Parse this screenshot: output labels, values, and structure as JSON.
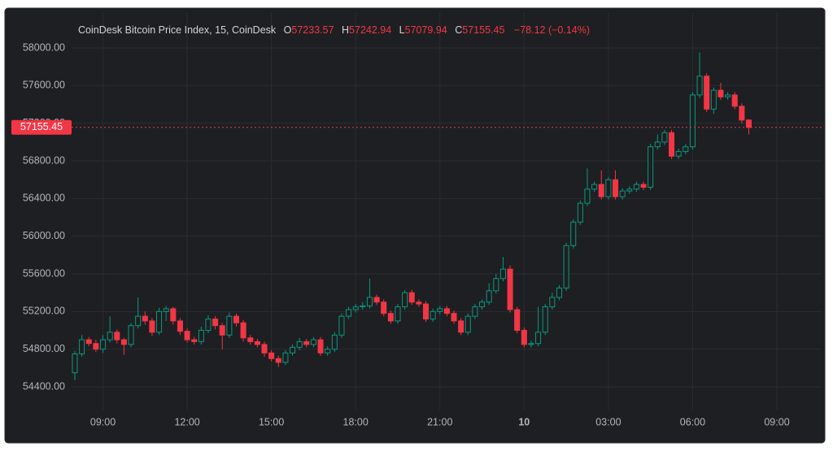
{
  "chart_data": {
    "type": "candlestick",
    "title": "CoinDesk Bitcoin Price Index, 15, CoinDesk",
    "ohlc_labels": [
      "O",
      "H",
      "L",
      "C"
    ],
    "change_label": "−78.12 (−0.14%)",
    "categories": [
      null,
      null,
      null,
      null,
      "09:00",
      null,
      null,
      null,
      null,
      null,
      null,
      null,
      null,
      null,
      null,
      null,
      "12:00",
      null,
      null,
      null,
      null,
      null,
      null,
      null,
      null,
      null,
      null,
      null,
      "15:00",
      null,
      null,
      null,
      null,
      null,
      null,
      null,
      null,
      null,
      null,
      null,
      "18:00",
      null,
      null,
      null,
      null,
      null,
      null,
      null,
      null,
      null,
      null,
      null,
      "21:00",
      null,
      null,
      null,
      null,
      null,
      null,
      null,
      null,
      null,
      null,
      null,
      "10",
      null,
      null,
      null,
      null,
      null,
      null,
      null,
      null,
      null,
      null,
      null,
      "03:00",
      null,
      null,
      null,
      null,
      null,
      null,
      null,
      null,
      null,
      null,
      null,
      "06:00",
      null,
      null,
      null,
      null,
      null,
      null,
      null,
      null,
      null,
      null,
      null,
      "09:00"
    ],
    "open": [
      54550,
      54750,
      54900,
      54860,
      54800,
      54900,
      54980,
      54900,
      54850,
      55050,
      55150,
      55100,
      54980,
      55200,
      55230,
      55100,
      54990,
      54900,
      54880,
      55000,
      55120,
      55050,
      54950,
      55150,
      55080,
      54920,
      54880,
      54850,
      54760,
      54700,
      54660,
      54760,
      54820,
      54880,
      54850,
      54900,
      54760,
      54800,
      54950,
      55150,
      55220,
      55250,
      55260,
      55350,
      55300,
      55180,
      55100,
      55250,
      55400,
      55300,
      55280,
      55120,
      55200,
      55230,
      55180,
      55100,
      54980,
      55150,
      55250,
      55300,
      55420,
      55550,
      55650,
      55220,
      55000,
      54850,
      54860,
      54980,
      55250,
      55350,
      55450,
      55900,
      56150,
      56350,
      56500,
      56550,
      56420,
      56600,
      56420,
      56480,
      56500,
      56550,
      56520,
      56950,
      57000,
      57100,
      56850,
      56900,
      56950,
      57500,
      57700,
      57350,
      57550,
      57480,
      57500,
      57380,
      57233.57,
      null,
      null,
      null,
      null
    ],
    "high": [
      54780,
      54950,
      54930,
      54900,
      54950,
      55150,
      55010,
      54920,
      55080,
      55350,
      55200,
      55130,
      55240,
      55260,
      55250,
      55130,
      55020,
      54930,
      55040,
      55160,
      55150,
      55080,
      55190,
      55180,
      55110,
      54950,
      54910,
      54880,
      54790,
      54730,
      54790,
      54850,
      54920,
      54910,
      54930,
      54930,
      54830,
      54980,
      55180,
      55250,
      55280,
      55300,
      55550,
      55380,
      55330,
      55210,
      55280,
      55430,
      55430,
      55330,
      55310,
      55230,
      55260,
      55260,
      55210,
      55130,
      55180,
      55280,
      55330,
      55500,
      55600,
      55780,
      55690,
      55250,
      55030,
      54890,
      55250,
      55280,
      55400,
      55480,
      55930,
      56180,
      56380,
      56720,
      56580,
      56700,
      56630,
      56700,
      56510,
      56530,
      56580,
      56580,
      56980,
      57080,
      57130,
      57130,
      56930,
      56980,
      57530,
      57950,
      57730,
      57580,
      57630,
      57530,
      57530,
      57410,
      57242.94,
      null,
      null,
      null,
      null
    ],
    "low": [
      54470,
      54720,
      54830,
      54770,
      54760,
      54870,
      54860,
      54740,
      54820,
      55020,
      55060,
      54940,
      54950,
      55100,
      55060,
      54950,
      54870,
      54850,
      54850,
      54970,
      55010,
      54800,
      54920,
      55040,
      54880,
      54850,
      54820,
      54720,
      54670,
      54610,
      54630,
      54730,
      54790,
      54820,
      54820,
      54730,
      54730,
      54770,
      54920,
      55120,
      55190,
      55220,
      55230,
      55270,
      55150,
      55070,
      55070,
      55220,
      55270,
      55250,
      55090,
      55090,
      55170,
      55150,
      55070,
      54950,
      54950,
      55120,
      55220,
      55270,
      55390,
      55520,
      55190,
      54970,
      54820,
      54820,
      54830,
      54950,
      55220,
      55320,
      55420,
      55870,
      56120,
      56320,
      56470,
      56390,
      56390,
      56390,
      56390,
      56450,
      56470,
      56490,
      56490,
      56920,
      56970,
      56820,
      56820,
      56870,
      56920,
      57470,
      57320,
      57300,
      57450,
      57450,
      57350,
      57200,
      57079.94,
      null,
      null,
      null,
      null
    ],
    "close": [
      54750,
      54900,
      54860,
      54800,
      54900,
      54980,
      54900,
      54850,
      55050,
      55150,
      55100,
      54980,
      55200,
      55230,
      55100,
      54990,
      54900,
      54880,
      55000,
      55120,
      55050,
      54950,
      55150,
      55080,
      54920,
      54880,
      54850,
      54760,
      54700,
      54660,
      54760,
      54820,
      54880,
      54850,
      54900,
      54760,
      54800,
      54950,
      55150,
      55220,
      55250,
      55260,
      55350,
      55300,
      55180,
      55100,
      55250,
      55400,
      55300,
      55280,
      55120,
      55200,
      55230,
      55180,
      55100,
      54980,
      55150,
      55250,
      55300,
      55420,
      55550,
      55650,
      55220,
      55000,
      54850,
      54860,
      54980,
      55250,
      55350,
      55450,
      55900,
      56150,
      56350,
      56500,
      56550,
      56420,
      56600,
      56420,
      56480,
      56500,
      56550,
      56520,
      56950,
      57000,
      57100,
      56850,
      56900,
      56950,
      57500,
      57700,
      57350,
      57550,
      57480,
      57500,
      57380,
      57233.57,
      57155.45,
      null,
      null,
      null,
      null
    ],
    "up_color": "#089981",
    "down_color": "#f23645",
    "ylim": [
      54150,
      58250
    ],
    "yticks": [
      {
        "value": 54400,
        "label": "54400.00"
      },
      {
        "value": 54800,
        "label": "54800.00"
      },
      {
        "value": 55200,
        "label": "55200.00"
      },
      {
        "value": 55600,
        "label": "55600.00"
      },
      {
        "value": 56000,
        "label": "56000.00"
      },
      {
        "value": 56400,
        "label": "56400.00"
      },
      {
        "value": 56800,
        "label": "56800.00"
      },
      {
        "value": 57200,
        "label": "57200.00"
      },
      {
        "value": 57600,
        "label": "57600.00"
      },
      {
        "value": 58000,
        "label": "58000.00"
      }
    ],
    "grid": true
  }
}
